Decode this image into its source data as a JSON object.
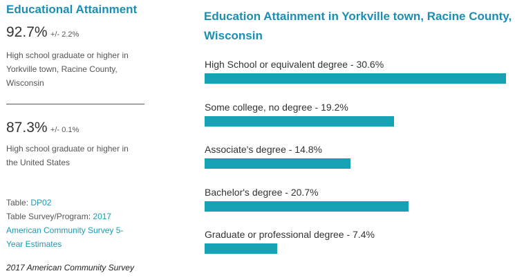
{
  "summary": {
    "title": "Educational Attainment",
    "local": {
      "value": "92.7%",
      "margin": "+/- 2.2%",
      "description": "High school graduate or higher in Yorkville town, Racine County, Wisconsin"
    },
    "national": {
      "value": "87.3%",
      "margin": "+/- 0.1%",
      "description": "High school graduate or higher in the United States"
    },
    "table_label": "Table:",
    "table_link": "DP02",
    "program_label": "Table Survey/Program:",
    "program_link": "2017 American Community Survey 5-Year Estimates",
    "footer": "2017 American Community Survey"
  },
  "chart_data": {
    "type": "bar",
    "orientation": "horizontal",
    "title": "Education Attainment in Yorkville town, Racine County, Wisconsin",
    "categories": [
      "High School or equivalent degree - 30.6%",
      "Some college, no degree - 19.2%",
      "Associate's degree - 14.8%",
      "Bachelor's degree - 20.7%",
      "Graduate or professional degree - 7.4%"
    ],
    "values": [
      30.6,
      19.2,
      14.8,
      20.7,
      7.4
    ],
    "color": "#14a2b4"
  }
}
